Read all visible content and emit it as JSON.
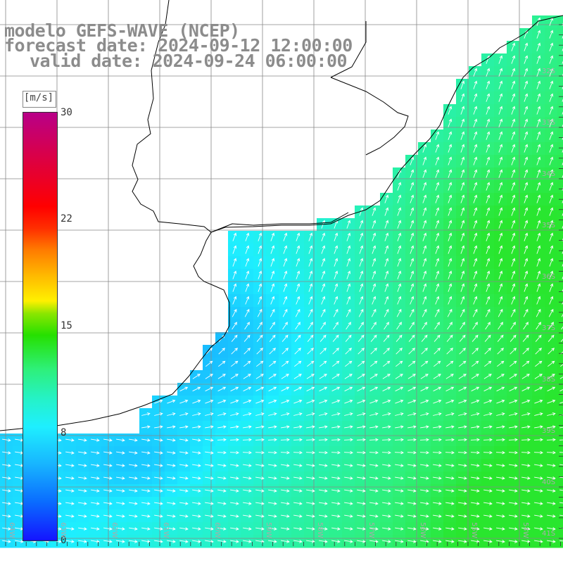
{
  "title": {
    "line1": "modelo GEFS-WAVE (NCEP)",
    "line2": "forecast date: 2024-09-12 12:00:00",
    "line3": "valid date: 2024-09-24 06:00:00"
  },
  "colorbar": {
    "unit": "[m/s]",
    "ticks": [
      "30",
      "22",
      "15",
      "8",
      "0"
    ],
    "tick_values": [
      30,
      22,
      15,
      8,
      0
    ],
    "min": 0,
    "max": 30,
    "colors": [
      "#1414ff",
      "#0a6cff",
      "#18b6ff",
      "#1eefff",
      "#25f2c8",
      "#2ef07a",
      "#26e000",
      "#fff000",
      "#ff7a00",
      "#ff0000",
      "#b80088"
    ]
  },
  "map": {
    "land_color": "#ffffff",
    "coast_color": "#000000",
    "grid_color": "#888888",
    "arrow_color": "#ffffff",
    "lat_labels": [
      "32S",
      "33S",
      "34S",
      "35S",
      "36S",
      "37S",
      "38S",
      "39S",
      "40S",
      "41S"
    ],
    "lon_labels": [
      "64W",
      "63W",
      "62W",
      "61W",
      "60W",
      "59W",
      "58W",
      "57W",
      "56W",
      "55W",
      "54W"
    ]
  }
}
